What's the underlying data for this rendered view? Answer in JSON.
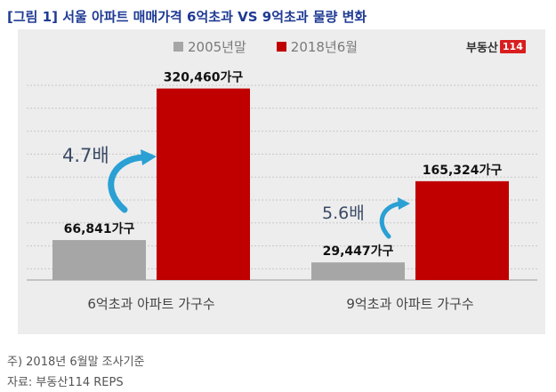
{
  "title": "[그림 1] 서울 아파트 매매가격 6억초과 VS 9억초과 물량 변화",
  "logo": {
    "text": "부동산",
    "box": "114"
  },
  "colors": {
    "series_2005": "#a6a6a6",
    "series_2018": "#c00000",
    "title": "#1f3a93",
    "arrow": "#2aa0d4",
    "multiplier": "#3b4a66"
  },
  "chart_data": {
    "type": "bar",
    "categories": [
      "6억초과 아파트 가구수",
      "9억초과 아파트 가구수"
    ],
    "series": [
      {
        "name": "2005년말",
        "values": [
          66841,
          29447
        ],
        "labels": [
          "66,841가구",
          "29,447가구"
        ]
      },
      {
        "name": "2018년6월",
        "values": [
          320460,
          165324
        ],
        "labels": [
          "320,460가구",
          "165,324가구"
        ]
      }
    ],
    "annotations": [
      "4.7배",
      "5.6배"
    ],
    "ylim": [
      0,
      360000
    ],
    "grid": true,
    "legend": "top"
  },
  "footnotes": [
    "주) 2018년 6월말 조사기준",
    "자료: 부동산114 REPS"
  ]
}
